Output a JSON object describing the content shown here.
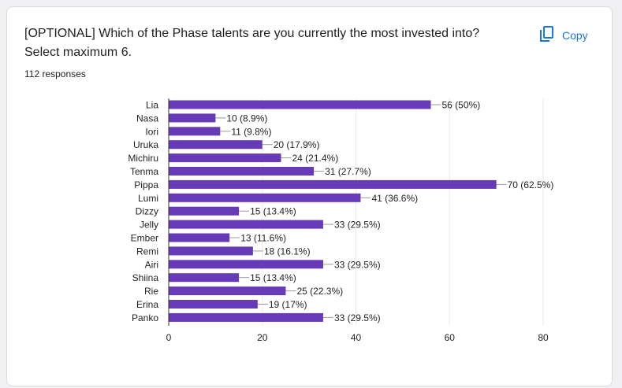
{
  "question": {
    "title": "[OPTIONAL] Which of the Phase talents are you currently the most invested into? Select maximum 6.",
    "responses": "112 responses"
  },
  "actions": {
    "copy_label": "Copy",
    "copy_icon": "copy-icon"
  },
  "colors": {
    "bar": "#673ab7",
    "accent": "#1a73e8"
  },
  "chart_data": {
    "type": "bar",
    "orientation": "horizontal",
    "categories": [
      "Lia",
      "Nasa",
      "Iori",
      "Uruka",
      "Michiru",
      "Tenma",
      "Pippa",
      "Lumi",
      "Dizzy",
      "Jelly",
      "Ember",
      "Remi",
      "Airi",
      "Shiina",
      "Rie",
      "Erina",
      "Panko"
    ],
    "values": [
      56,
      10,
      11,
      20,
      24,
      31,
      70,
      41,
      15,
      33,
      13,
      18,
      33,
      15,
      25,
      19,
      33
    ],
    "data_labels": [
      "56 (50%)",
      "10 (8.9%)",
      "11 (9.8%)",
      "20 (17.9%)",
      "24 (21.4%)",
      "31 (27.7%)",
      "70 (62.5%)",
      "41 (36.6%)",
      "15 (13.4%)",
      "33 (29.5%)",
      "13 (11.6%)",
      "18 (16.1%)",
      "33 (29.5%)",
      "15 (13.4%)",
      "25 (22.3%)",
      "19 (17%)",
      "33 (29.5%)"
    ],
    "xlim": [
      0,
      80
    ],
    "xticks": [
      0,
      20,
      40,
      60,
      80
    ],
    "grid": true,
    "title": "",
    "xlabel": "",
    "ylabel": ""
  }
}
